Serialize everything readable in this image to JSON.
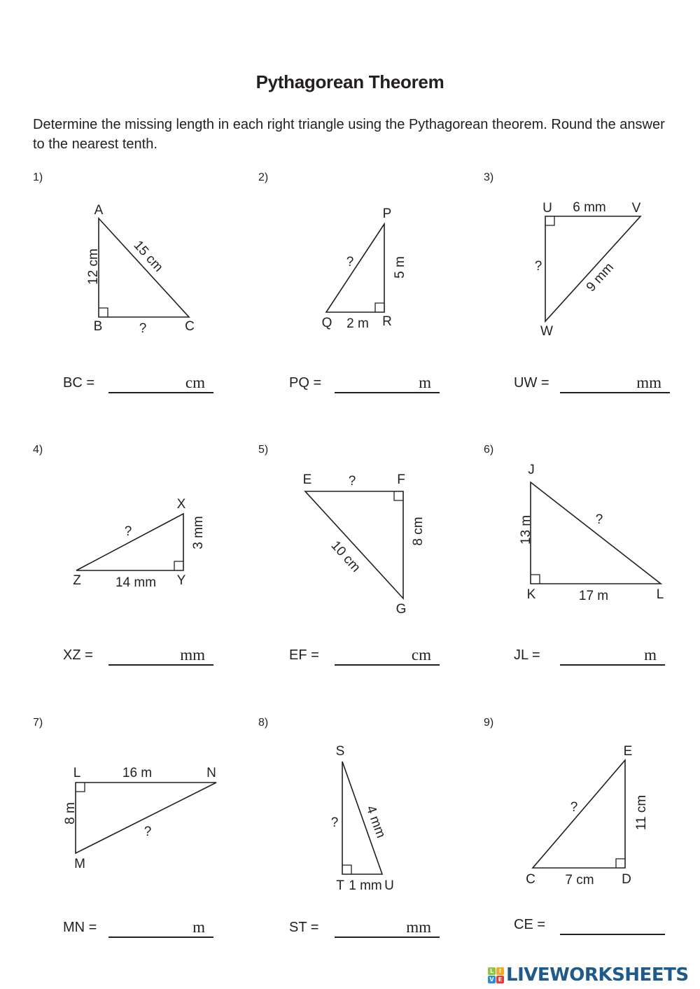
{
  "title": "Pythagorean Theorem",
  "instructions": "Determine the missing length in each right triangle using the Pythagorean theorem. Round the answer to the nearest tenth.",
  "problems": [
    {
      "number": "1)",
      "vertices": [
        "A",
        "B",
        "C"
      ],
      "sides": [
        "12 cm",
        "15 cm",
        "?"
      ],
      "answer_label": "BC  =",
      "unit": "cm",
      "answer": ""
    },
    {
      "number": "2)",
      "vertices": [
        "P",
        "Q",
        "R"
      ],
      "sides": [
        "?",
        "5 m",
        "2 m"
      ],
      "answer_label": "PQ  =",
      "unit": "m",
      "answer": ""
    },
    {
      "number": "3)",
      "vertices": [
        "U",
        "V",
        "W"
      ],
      "sides": [
        "6 mm",
        "?",
        "9 mm"
      ],
      "answer_label": "UW  =",
      "unit": "mm",
      "answer": ""
    },
    {
      "number": "4)",
      "vertices": [
        "X",
        "Z",
        "Y"
      ],
      "sides": [
        "?",
        "3 mm",
        "14 mm"
      ],
      "answer_label": "XZ  =",
      "unit": "mm",
      "answer": ""
    },
    {
      "number": "5)",
      "vertices": [
        "E",
        "F",
        "G"
      ],
      "sides": [
        "?",
        "8 cm",
        "10 cm"
      ],
      "answer_label": "EF  =",
      "unit": "cm",
      "answer": ""
    },
    {
      "number": "6)",
      "vertices": [
        "J",
        "K",
        "L"
      ],
      "sides": [
        "13 m",
        "?",
        "17 m"
      ],
      "answer_label": "JL  =",
      "unit": "m",
      "answer": ""
    },
    {
      "number": "7)",
      "vertices": [
        "L",
        "N",
        "M"
      ],
      "sides": [
        "16 m",
        "8 m",
        "?"
      ],
      "answer_label": "MN  =",
      "unit": "m",
      "answer": ""
    },
    {
      "number": "8)",
      "vertices": [
        "S",
        "T",
        "U"
      ],
      "sides": [
        "?",
        "4 mm",
        "1 mm"
      ],
      "answer_label": "ST  =",
      "unit": "mm",
      "answer": ""
    },
    {
      "number": "9)",
      "vertices": [
        "E",
        "C",
        "D"
      ],
      "sides": [
        "?",
        "11 cm",
        "7 cm"
      ],
      "answer_label": "CE  =",
      "unit": "",
      "answer": ""
    }
  ],
  "logo": {
    "text": "LIVEWORKSHEETS",
    "tiles": [
      "L",
      "I",
      "V",
      "E"
    ],
    "colors": [
      "#8dc63f",
      "#f7a823",
      "#2a8fd6",
      "#e63a3a"
    ],
    "brand_color": "#1e5a8c"
  }
}
